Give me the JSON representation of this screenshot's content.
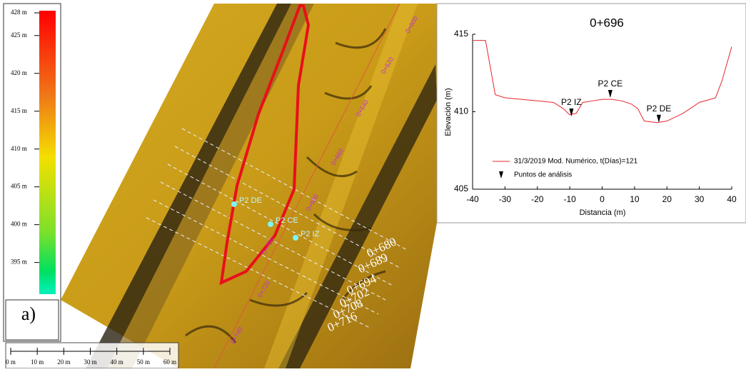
{
  "colorbar": {
    "lim": [
      391,
      428
    ],
    "ticks": [
      {
        "value": 428,
        "label": "428 m"
      },
      {
        "value": 425,
        "label": "425 m"
      },
      {
        "value": 420,
        "label": "420 m"
      },
      {
        "value": 415,
        "label": "415 m"
      },
      {
        "value": 410,
        "label": "410 m"
      },
      {
        "value": 405,
        "label": "405 m"
      },
      {
        "value": 400,
        "label": "400 m"
      },
      {
        "value": 395,
        "label": "395 m"
      }
    ]
  },
  "panel_label": "a)",
  "scale_bar": {
    "ticks": [
      {
        "value": 0,
        "label": "0 m"
      },
      {
        "value": 10,
        "label": "10 m"
      },
      {
        "value": 20,
        "label": "20 m"
      },
      {
        "value": 30,
        "label": "30 m"
      },
      {
        "value": 40,
        "label": "40 m"
      },
      {
        "value": 50,
        "label": "50 m"
      },
      {
        "value": 60,
        "label": "60 m"
      }
    ]
  },
  "map": {
    "sections": [
      "0+680",
      "0+689",
      "0+694",
      "0+702",
      "0+708",
      "0+716"
    ],
    "chainage": [
      "0+600",
      "0+620",
      "0+640",
      "0+660",
      "0+680",
      "0+700",
      "0+720",
      "0+740"
    ],
    "points": [
      "P2 DE",
      "P2 CE",
      "P2 IZ"
    ]
  },
  "chart_data": {
    "type": "line",
    "title": "0+696",
    "x_label": "Distancia (m)",
    "y_label": "Elevación (m)",
    "xlim": [
      -40,
      40
    ],
    "xticks": [
      -40,
      -30,
      -20,
      -10,
      0,
      10,
      20,
      30,
      40
    ],
    "ylim": [
      405,
      415
    ],
    "yticks": [
      405,
      410,
      415
    ],
    "series": [
      {
        "name": "31/3/2019 Mod. Numérico, t(Días)=121",
        "color": "#e8252b",
        "x": [
          -40,
          -36,
          -33,
          -30,
          -25,
          -20,
          -15,
          -12,
          -10,
          -8,
          -6,
          -3,
          0,
          3,
          6,
          9,
          11,
          13,
          17,
          20,
          25,
          30,
          35,
          37,
          40
        ],
        "values": [
          414.6,
          414.6,
          411.1,
          410.9,
          410.8,
          410.7,
          410.6,
          410.2,
          409.8,
          409.9,
          410.6,
          410.7,
          410.8,
          410.8,
          410.7,
          410.5,
          410.2,
          409.4,
          409.3,
          409.4,
          409.9,
          410.6,
          410.9,
          412.0,
          414.2
        ]
      },
      {
        "name": "Puntos de análisis",
        "color": "#000000",
        "x": [
          -9.5,
          2.5,
          17.5
        ],
        "values": [
          409.7,
          410.9,
          409.3
        ],
        "labels": [
          "P2 IZ",
          "P2 CE",
          "P2 DE"
        ]
      }
    ]
  }
}
